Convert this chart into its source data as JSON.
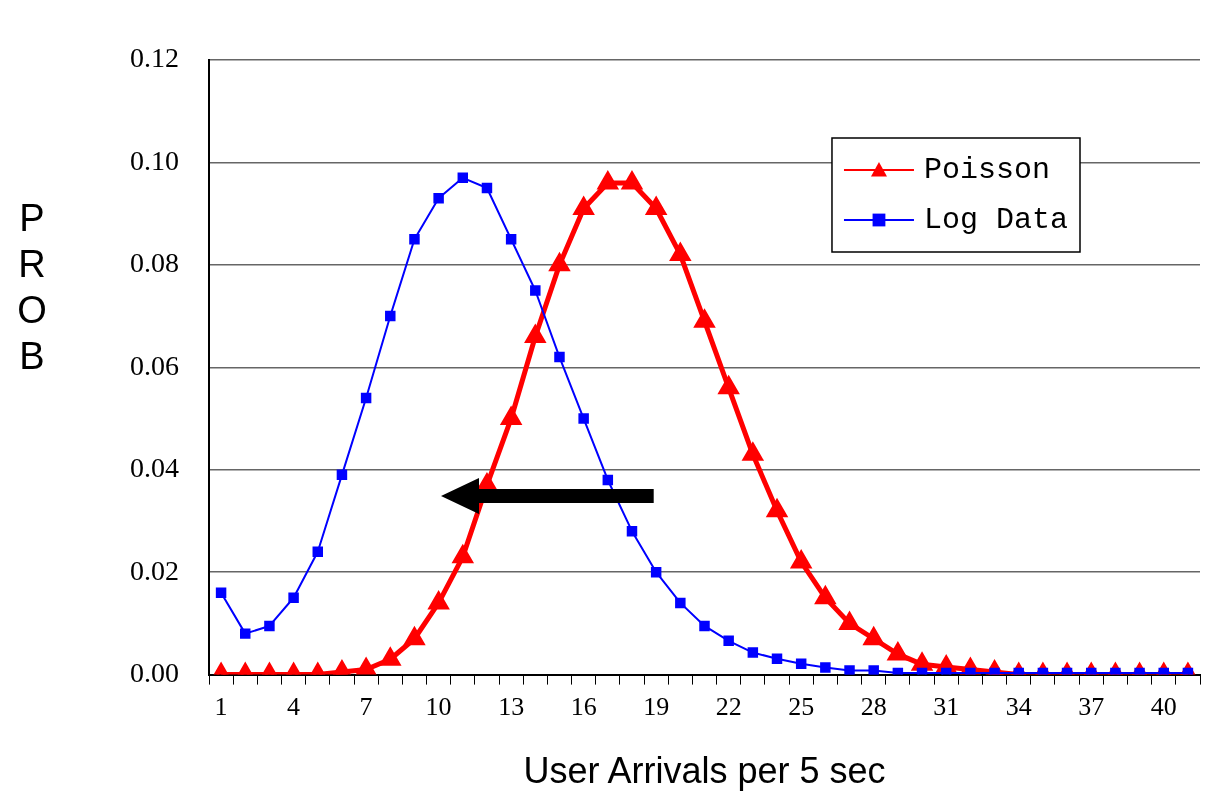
{
  "chart_data": {
    "type": "line",
    "xlabel": "User Arrivals per 5 sec",
    "ylabel": "PROB",
    "categories": [
      "1",
      null,
      null,
      "4",
      null,
      null,
      "7",
      null,
      null,
      "10",
      null,
      null,
      "13",
      null,
      null,
      "16",
      null,
      null,
      "19",
      null,
      null,
      "22",
      null,
      null,
      "25",
      null,
      null,
      "28",
      null,
      null,
      "31",
      null,
      null,
      "34",
      null,
      null,
      "37",
      null,
      null,
      "40",
      null
    ],
    "series": [
      {
        "name": "Poisson",
        "color": "#ff0000",
        "marker": "triangle",
        "values": [
          0,
          0,
          0,
          0,
          0,
          0.0005,
          0.001,
          0.003,
          0.007,
          0.014,
          0.023,
          0.037,
          0.05,
          0.066,
          0.08,
          0.091,
          0.096,
          0.096,
          0.091,
          0.082,
          0.069,
          0.056,
          0.043,
          0.032,
          0.022,
          0.015,
          0.01,
          0.007,
          0.004,
          0.002,
          0.0015,
          0.001,
          0.0005,
          0,
          0,
          0,
          0,
          0,
          0,
          0,
          0
        ]
      },
      {
        "name": "Log Data",
        "color": "#0000ff",
        "marker": "square",
        "values": [
          0.016,
          0.008,
          0.0095,
          0.015,
          0.024,
          0.039,
          0.054,
          0.07,
          0.085,
          0.093,
          0.097,
          0.095,
          0.085,
          0.075,
          0.062,
          0.05,
          0.038,
          0.028,
          0.02,
          0.014,
          0.0095,
          0.0066,
          0.0043,
          0.0031,
          0.0021,
          0.0014,
          0.0008,
          0.0008,
          0.0003,
          0.0003,
          0.0003,
          0.0003,
          0.0003,
          0.0003,
          0.0003,
          0.0003,
          0.0003,
          0.0003,
          0.0003,
          0.0003,
          0.0003
        ]
      }
    ],
    "ylim": [
      0,
      0.12
    ],
    "yticks": [
      {
        "value": 0,
        "label": "0.00"
      },
      {
        "value": 0.02,
        "label": "0.02"
      },
      {
        "value": 0.04,
        "label": "0.04"
      },
      {
        "value": 0.06,
        "label": "0.06"
      },
      {
        "value": 0.08,
        "label": "0.08"
      },
      {
        "value": 0.1,
        "label": "0.10"
      },
      {
        "value": 0.12,
        "label": "0.12"
      }
    ],
    "grid": "y",
    "legend": "top right",
    "line_style": "solid"
  }
}
